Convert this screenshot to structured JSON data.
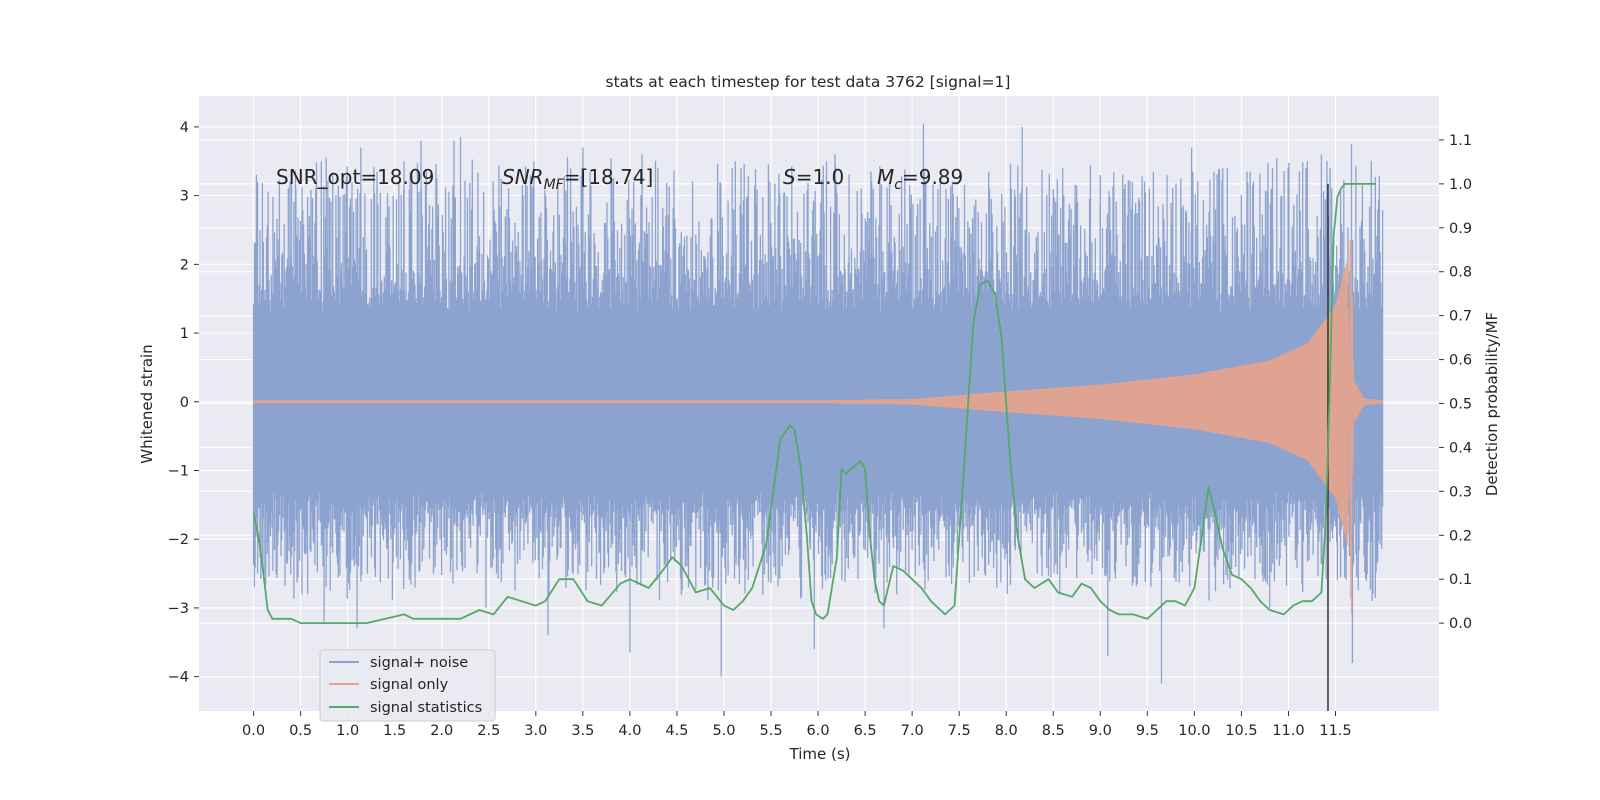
{
  "chart_data": {
    "type": "line",
    "title": "stats at each timestep for test data 3762 [signal=1]",
    "xlabel": "Time (s)",
    "ylabel": "Whitened strain",
    "ylabel_right": "Detection probability/MF",
    "xlim": [
      -0.58,
      12.6
    ],
    "ylim": [
      -4.5,
      4.45
    ],
    "ylim_right": [
      -0.2,
      1.2
    ],
    "x_ticks": [
      "0.0",
      "0.5",
      "1.0",
      "1.5",
      "2.0",
      "2.5",
      "3.0",
      "3.5",
      "4.0",
      "4.5",
      "5.0",
      "5.5",
      "6.0",
      "6.5",
      "7.0",
      "7.5",
      "8.0",
      "8.5",
      "9.0",
      "9.5",
      "10.0",
      "10.5",
      "11.0",
      "11.5"
    ],
    "y_ticks": [
      "4",
      "3",
      "2",
      "1",
      "0",
      "−1",
      "−2",
      "−3",
      "−4"
    ],
    "y_ticks_right": [
      "1.1",
      "1.0",
      "0.9",
      "0.8",
      "0.7",
      "0.6",
      "0.5",
      "0.4",
      "0.3",
      "0.2",
      "0.1",
      "0.0"
    ],
    "grid": true,
    "legend_position": "lower-left",
    "annotations": {
      "snr_opt": "SNR_opt=18.09",
      "snr_mf_base": "SNR",
      "snr_mf_sub": "MF",
      "snr_mf_rest": "=[18.74]",
      "s_sym": "S",
      "s_rest": "=1.0",
      "mc_base": "M",
      "mc_sub": "c",
      "mc_rest": "=9.89"
    },
    "series": [
      {
        "name": "signal+ noise",
        "color": "#8ca3cf",
        "style": "dense noise band",
        "x_range": [
          0.0,
          12.0
        ],
        "envelope": {
          "core": [
            -1.3,
            1.3
          ],
          "typical_peaks": [
            -2.6,
            3.3
          ]
        },
        "spikes": [
          [
            0.03,
            3.3
          ],
          [
            0.45,
            3.1
          ],
          [
            0.72,
            3.5
          ],
          [
            1.14,
            3.7
          ],
          [
            1.6,
            3.5
          ],
          [
            1.78,
            3.8
          ],
          [
            2.13,
            3.8
          ],
          [
            2.2,
            3.85
          ],
          [
            2.98,
            3.5
          ],
          [
            3.37,
            3.4
          ],
          [
            3.5,
            3.7
          ],
          [
            4.13,
            3.6
          ],
          [
            5.12,
            3.5
          ],
          [
            6.18,
            3.6
          ],
          [
            7.12,
            4.05
          ],
          [
            7.36,
            3.1
          ],
          [
            8.17,
            4.0
          ],
          [
            8.6,
            3.4
          ],
          [
            9.0,
            3.3
          ],
          [
            9.97,
            3.7
          ],
          [
            10.35,
            3.4
          ],
          [
            10.83,
            3.4
          ],
          [
            11.2,
            3.5
          ],
          [
            11.35,
            3.6
          ],
          [
            11.67,
            3.75
          ],
          [
            11.95,
            2.8
          ],
          [
            0.01,
            -2.5
          ],
          [
            0.75,
            -3.2
          ],
          [
            1.1,
            -3.3
          ],
          [
            2.47,
            -3.0
          ],
          [
            3.13,
            -3.4
          ],
          [
            4.0,
            -3.65
          ],
          [
            4.97,
            -4.0
          ],
          [
            5.96,
            -3.6
          ],
          [
            6.7,
            -3.3
          ],
          [
            9.08,
            -3.7
          ],
          [
            9.65,
            -4.1
          ],
          [
            10.8,
            -3.0
          ],
          [
            11.68,
            -3.8
          ],
          [
            11.89,
            -2.9
          ]
        ]
      },
      {
        "name": "signal only",
        "color": "#e8a48a",
        "style": "chirp",
        "x_range": [
          0.0,
          12.0
        ],
        "amplitude_points": [
          [
            0.0,
            0.02
          ],
          [
            6.0,
            0.02
          ],
          [
            7.0,
            0.04
          ],
          [
            8.0,
            0.15
          ],
          [
            9.0,
            0.25
          ],
          [
            10.0,
            0.4
          ],
          [
            10.8,
            0.6
          ],
          [
            11.2,
            0.85
          ],
          [
            11.5,
            1.4
          ],
          [
            11.63,
            2.1
          ],
          [
            11.66,
            -3.0
          ],
          [
            11.7,
            0.3
          ],
          [
            11.8,
            0.05
          ],
          [
            12.0,
            0.02
          ]
        ]
      },
      {
        "name": "signal statistics",
        "color": "#55a868",
        "axis": "right",
        "x": [
          0.0,
          0.05,
          0.1,
          0.15,
          0.2,
          0.3,
          0.4,
          0.5,
          0.6,
          0.8,
          1.0,
          1.2,
          1.4,
          1.6,
          1.7,
          1.9,
          2.0,
          2.2,
          2.4,
          2.55,
          2.7,
          2.85,
          3.0,
          3.1,
          3.25,
          3.4,
          3.55,
          3.7,
          3.9,
          4.0,
          4.1,
          4.2,
          4.35,
          4.45,
          4.55,
          4.7,
          4.85,
          5.0,
          5.1,
          5.2,
          5.3,
          5.45,
          5.6,
          5.7,
          5.75,
          5.82,
          5.88,
          5.93,
          5.98,
          6.05,
          6.1,
          6.2,
          6.25,
          6.3,
          6.35,
          6.45,
          6.5,
          6.55,
          6.6,
          6.65,
          6.7,
          6.8,
          6.9,
          7.0,
          7.1,
          7.2,
          7.35,
          7.45,
          7.55,
          7.65,
          7.72,
          7.8,
          7.88,
          7.95,
          8.0,
          8.05,
          8.12,
          8.2,
          8.3,
          8.45,
          8.55,
          8.7,
          8.8,
          8.9,
          9.0,
          9.1,
          9.2,
          9.35,
          9.5,
          9.6,
          9.7,
          9.8,
          9.9,
          10.0,
          10.08,
          10.15,
          10.22,
          10.3,
          10.4,
          10.5,
          10.6,
          10.7,
          10.8,
          10.95,
          11.05,
          11.15,
          11.25,
          11.35,
          11.4,
          11.44,
          11.48,
          11.52,
          11.56,
          11.6,
          11.65,
          11.7,
          11.8,
          11.93
        ],
        "values": [
          0.25,
          0.2,
          0.12,
          0.03,
          0.01,
          0.01,
          0.01,
          0.0,
          0.0,
          0.0,
          0.0,
          0.0,
          0.01,
          0.02,
          0.01,
          0.01,
          0.01,
          0.01,
          0.03,
          0.02,
          0.06,
          0.05,
          0.04,
          0.05,
          0.1,
          0.1,
          0.05,
          0.04,
          0.09,
          0.1,
          0.09,
          0.08,
          0.12,
          0.15,
          0.13,
          0.07,
          0.08,
          0.04,
          0.03,
          0.05,
          0.08,
          0.18,
          0.42,
          0.45,
          0.44,
          0.35,
          0.2,
          0.05,
          0.02,
          0.01,
          0.02,
          0.15,
          0.35,
          0.34,
          0.35,
          0.37,
          0.35,
          0.2,
          0.1,
          0.05,
          0.04,
          0.13,
          0.12,
          0.1,
          0.08,
          0.05,
          0.02,
          0.04,
          0.35,
          0.68,
          0.77,
          0.78,
          0.75,
          0.65,
          0.5,
          0.35,
          0.2,
          0.1,
          0.08,
          0.1,
          0.07,
          0.06,
          0.09,
          0.08,
          0.05,
          0.03,
          0.02,
          0.02,
          0.01,
          0.03,
          0.05,
          0.05,
          0.04,
          0.08,
          0.2,
          0.31,
          0.25,
          0.17,
          0.11,
          0.1,
          0.08,
          0.05,
          0.03,
          0.02,
          0.04,
          0.05,
          0.05,
          0.07,
          0.25,
          0.55,
          0.88,
          0.97,
          0.99,
          1.0,
          1.0,
          1.0,
          1.0,
          1.0
        ]
      }
    ],
    "markers": {
      "vertical_line": {
        "x": 11.42,
        "y_right": [
          -0.2,
          1.0
        ],
        "color": "#333333"
      }
    },
    "colors": {
      "plot_background": "#eaeaf2",
      "grid": "#ffffff"
    }
  }
}
